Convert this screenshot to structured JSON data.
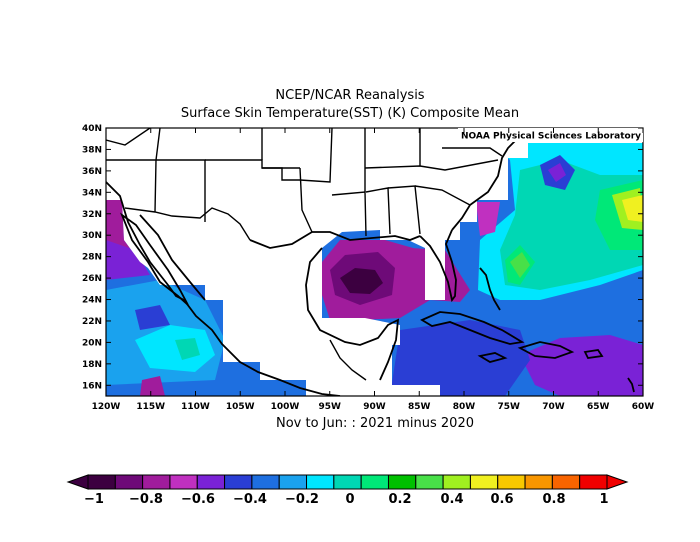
{
  "title_line1": "NCEP/NCAR Reanalysis",
  "title_line2": "Surface Skin Temperature(SST) (K) Composite Mean",
  "watermark": "NOAA Physical Sciences Laboratory",
  "period_label": "Nov to Jun: : 2021 minus 2020",
  "lat_labels": [
    "40N",
    "38N",
    "36N",
    "34N",
    "32N",
    "30N",
    "28N",
    "26N",
    "24N",
    "22N",
    "20N",
    "18N",
    "16N"
  ],
  "lon_labels": [
    "120W",
    "115W",
    "110W",
    "105W",
    "100W",
    "95W",
    "90W",
    "85W",
    "80W",
    "75W",
    "70W",
    "65W",
    "60W"
  ],
  "colorbar_labels": [
    "-1",
    "-0.8",
    "-0.6",
    "-0.4",
    "-0.2",
    "0",
    "0.2",
    "0.4",
    "0.6",
    "0.8",
    "1"
  ],
  "colors": {
    "scale": [
      "#3c0040",
      "#6e0a78",
      "#a01c9c",
      "#c030c0",
      "#7a22d6",
      "#2a3ed4",
      "#1e6fe0",
      "#1aa2ee",
      "#00e6ff",
      "#00d7b4",
      "#00e878",
      "#00c000",
      "#48e048",
      "#a0f020",
      "#f0f020",
      "#f8c800",
      "#f89600",
      "#f86400",
      "#f00000"
    ]
  },
  "chart_data": {
    "type": "heatmap",
    "quantity": "Surface Skin Temperature difference",
    "units": "K",
    "lon_range": [
      -120,
      -60
    ],
    "lat_range": [
      15,
      40
    ],
    "color_range": [
      -1,
      1
    ],
    "features": [
      {
        "lon": -90.5,
        "lat": 25.8,
        "value": -1.0
      },
      {
        "lon": -90.0,
        "lat": 26.0,
        "value": -0.8
      },
      {
        "lon": -119.0,
        "lat": 31.0,
        "value": -0.6
      },
      {
        "lon": -68.0,
        "lat": 17.0,
        "value": -0.6
      },
      {
        "lon": -113.0,
        "lat": 16.0,
        "value": -0.5
      },
      {
        "lon": -85.0,
        "lat": 18.0,
        "value": -0.5
      },
      {
        "lon": -70.0,
        "lat": 35.5,
        "value": -0.4
      },
      {
        "lon": -73.0,
        "lat": 26.5,
        "value": 0.3
      },
      {
        "lon": -62.0,
        "lat": 32.0,
        "value": 0.5
      }
    ]
  }
}
